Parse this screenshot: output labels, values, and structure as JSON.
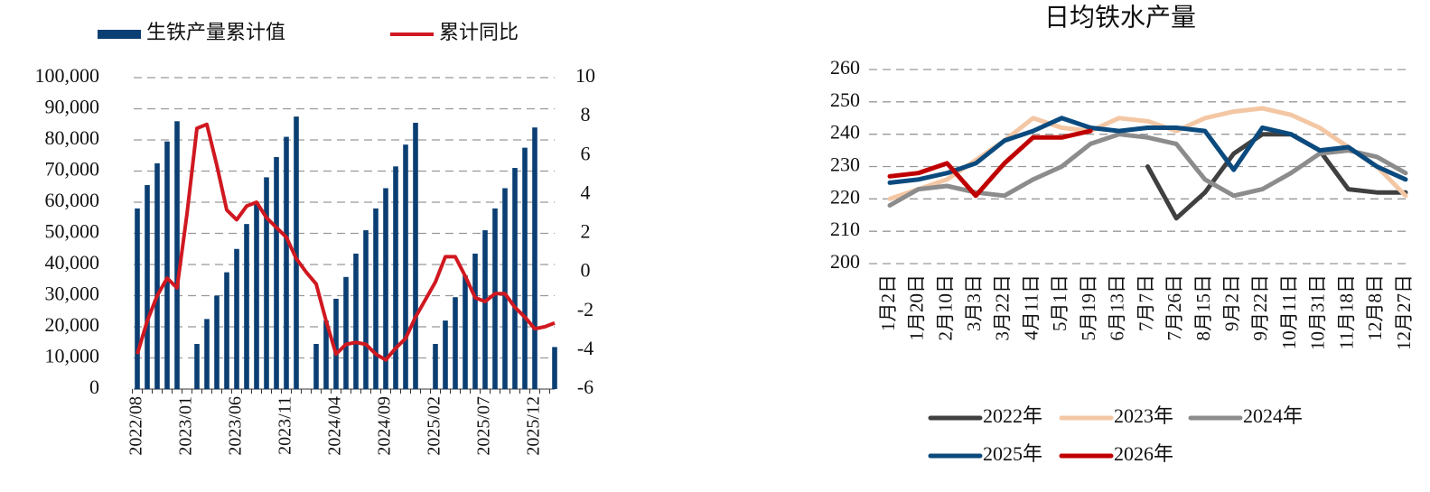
{
  "chart_data": [
    {
      "type": "combo",
      "categories": [
        "2022/08",
        null,
        null,
        null,
        null,
        "2023/01",
        null,
        null,
        null,
        null,
        "2023/06",
        null,
        null,
        null,
        null,
        "2023/11",
        null,
        null,
        null,
        null,
        "2024/04",
        null,
        null,
        null,
        null,
        "2024/09",
        null,
        null,
        null,
        null,
        "2025/02",
        null,
        null,
        null,
        null,
        "2025/07",
        null,
        null,
        null,
        null,
        "2025/12",
        null,
        null
      ],
      "series": [
        {
          "name": "生铁产量累计值",
          "type": "bar",
          "color": "#0b3f73",
          "values": [
            58000,
            65500,
            72500,
            79500,
            86000,
            null,
            14500,
            22500,
            30000,
            37500,
            45000,
            53000,
            60000,
            68000,
            74500,
            81000,
            87500,
            null,
            14500,
            22000,
            29000,
            36000,
            43500,
            51000,
            58000,
            64500,
            71500,
            78500,
            85500,
            null,
            14500,
            22000,
            29500,
            36500,
            43500,
            51000,
            58000,
            64500,
            71000,
            77500,
            84000,
            null,
            13500
          ]
        },
        {
          "name": "累计同比",
          "type": "line",
          "axis": "y2",
          "color": "#d01820",
          "values": [
            -4.2,
            -2.5,
            -1.2,
            -0.3,
            -0.8,
            3.0,
            7.4,
            7.6,
            5.5,
            3.2,
            2.7,
            3.4,
            3.6,
            2.8,
            2.3,
            1.8,
            0.7,
            0.0,
            -0.6,
            -2.5,
            -4.2,
            -3.7,
            -3.6,
            -3.7,
            -4.2,
            -4.5,
            -3.9,
            -3.4,
            -2.3,
            -1.4,
            -0.5,
            0.8,
            0.8,
            -0.2,
            -1.3,
            -1.5,
            -1.1,
            -1.1,
            -1.8,
            -2.3,
            -2.9,
            -2.8,
            -2.6
          ]
        }
      ],
      "ylim": [
        0,
        100000
      ],
      "yticks": [
        {
          "value": 0,
          "label": "0"
        },
        {
          "value": 10000,
          "label": "10,000"
        },
        {
          "value": 20000,
          "label": "20,000"
        },
        {
          "value": 30000,
          "label": "30,000"
        },
        {
          "value": 40000,
          "label": "40,000"
        },
        {
          "value": 50000,
          "label": "50,000"
        },
        {
          "value": 60000,
          "label": "60,000"
        },
        {
          "value": 70000,
          "label": "70,000"
        },
        {
          "value": 80000,
          "label": "80,000"
        },
        {
          "value": 90000,
          "label": "90,000"
        },
        {
          "value": 100000,
          "label": "100,000"
        }
      ],
      "y2lim": [
        -6,
        10
      ],
      "y2ticks": [
        -6,
        -4,
        -2,
        0,
        2,
        4,
        6,
        8,
        10
      ],
      "grid": true,
      "legend": "top"
    },
    {
      "type": "line",
      "title": "日均铁水产量",
      "categories": [
        "1月2日",
        "1月20日",
        "2月10日",
        "3月3日",
        "3月22日",
        "4月11日",
        "5月1日",
        "5月19日",
        "6月13日",
        "7月7日",
        "7月26日",
        "8月15日",
        "9月2日",
        "9月22日",
        "10月11日",
        "10月31日",
        "11月18日",
        "12月8日",
        "12月27日"
      ],
      "series": [
        {
          "name": "2022年",
          "color": "#404040",
          "values": [
            null,
            null,
            null,
            null,
            null,
            null,
            null,
            null,
            null,
            230,
            214,
            222,
            234,
            240,
            240,
            235,
            223,
            222,
            222
          ]
        },
        {
          "name": "2023年",
          "color": "#f4c7a4",
          "values": [
            220,
            223,
            226,
            232,
            238,
            245,
            242,
            241,
            245,
            244,
            241,
            245,
            247,
            248,
            246,
            242,
            236,
            230,
            221
          ]
        },
        {
          "name": "2024年",
          "color": "#8c8c8c",
          "values": [
            218,
            223,
            224,
            222,
            221,
            226,
            230,
            237,
            240,
            239,
            237,
            226,
            221,
            223,
            228,
            234,
            235,
            233,
            228
          ]
        },
        {
          "name": "2025年",
          "color": "#0b4a7e",
          "values": [
            225,
            226,
            228,
            231,
            238,
            241,
            245,
            242,
            241,
            242,
            242,
            241,
            229,
            242,
            240,
            235,
            236,
            230,
            226
          ]
        },
        {
          "name": "2026年",
          "color": "#c00000",
          "values": [
            227,
            228,
            231,
            221,
            231,
            239,
            239,
            241,
            null,
            null,
            null,
            null,
            null,
            null,
            null,
            null,
            null,
            null,
            null
          ]
        }
      ],
      "ylim": [
        200,
        260
      ],
      "yticks": [
        200,
        210,
        220,
        230,
        240,
        250,
        260
      ],
      "grid": true,
      "legend": "bottom"
    }
  ]
}
